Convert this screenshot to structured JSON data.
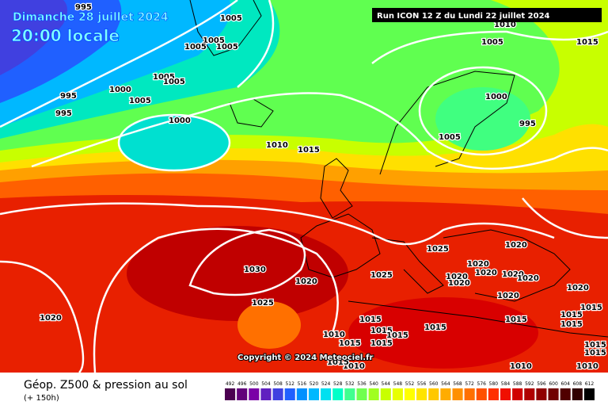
{
  "header": {
    "date": "Dimanche 28 juillet 2024",
    "time": "20:00 locale",
    "run": "Run ICON 12 Z du Lundi 22 juillet 2024"
  },
  "map": {
    "copyright": "Copyright © 2024 Meteociel.fr",
    "isobar_labels": [
      995,
      1005,
      1005,
      1005,
      1005,
      1005,
      1005,
      1000,
      995,
      1005,
      995,
      1000,
      1010,
      1015,
      1010,
      1005,
      1015,
      1000,
      995,
      1005,
      1025,
      1020,
      1020,
      1030,
      1020,
      1025,
      1020,
      1020,
      1020,
      1020,
      1020,
      1020,
      1020,
      1025,
      1020,
      1015,
      1015,
      1015,
      1015,
      1015,
      1015,
      1015,
      1015,
      1015,
      1015,
      1015,
      1015,
      1010,
      1010,
      1010,
      1010,
      1015
    ]
  },
  "footer": {
    "title": "Géop. Z500 & pression au sol",
    "lead": "(+ 150h)",
    "scale_values": [
      492,
      496,
      500,
      504,
      508,
      512,
      516,
      520,
      524,
      528,
      532,
      536,
      540,
      544,
      548,
      552,
      556,
      560,
      564,
      568,
      572,
      576,
      580,
      584,
      588,
      592,
      596,
      600,
      604,
      608,
      612
    ],
    "scale_colors": [
      "#4b0050",
      "#62007a",
      "#7a00a6",
      "#6020c0",
      "#4040e0",
      "#2060ff",
      "#0090ff",
      "#00b8ff",
      "#00e0f0",
      "#00ffc8",
      "#40ff90",
      "#70ff50",
      "#a0ff20",
      "#c8ff00",
      "#e8ff00",
      "#ffff00",
      "#ffe400",
      "#ffc800",
      "#ffac00",
      "#ff9000",
      "#ff7000",
      "#ff5000",
      "#ff3000",
      "#f01000",
      "#d00000",
      "#b00000",
      "#900000",
      "#700000",
      "#500000",
      "#300000",
      "#000000"
    ]
  }
}
